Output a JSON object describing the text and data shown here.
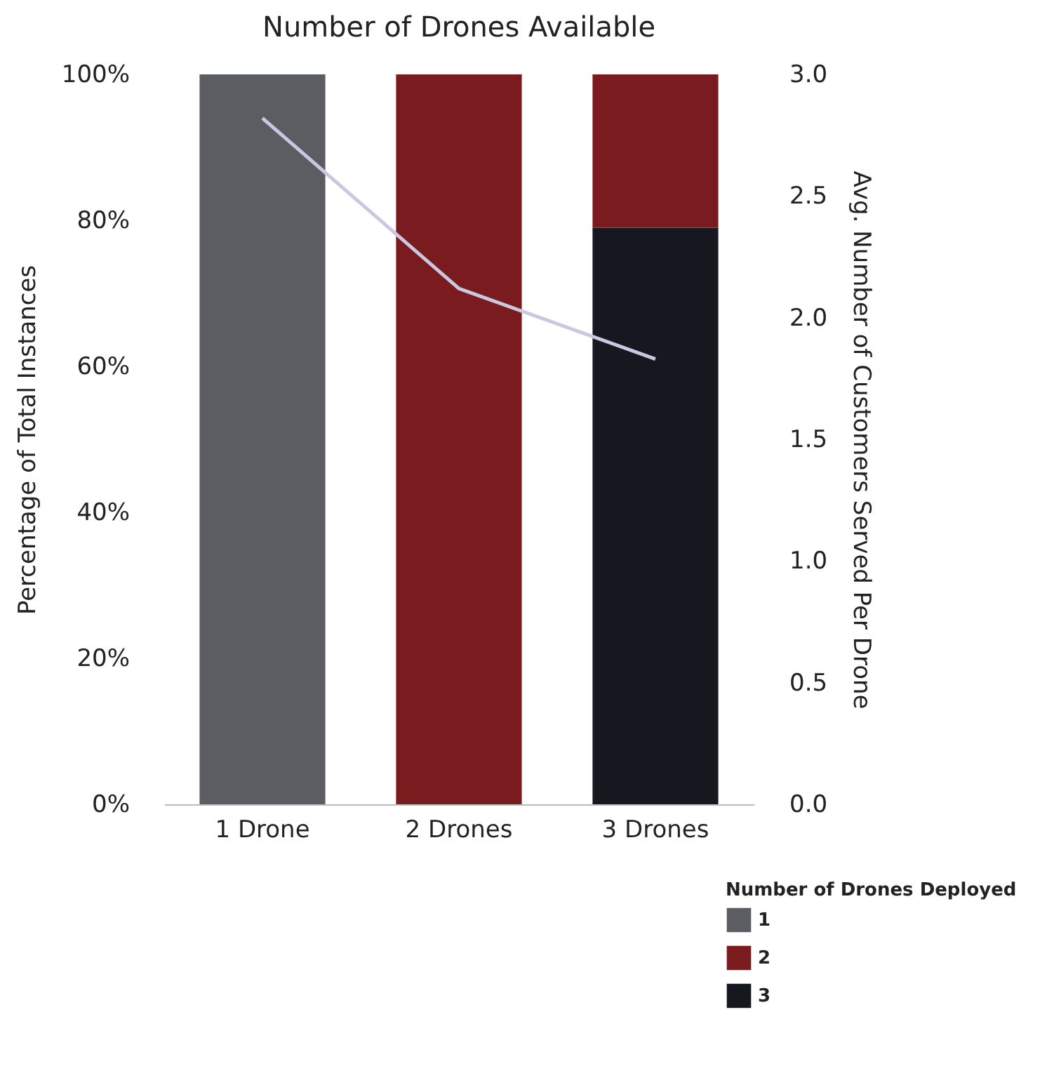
{
  "chart_data": {
    "type": "bar",
    "title": "Number of Drones Available",
    "ylabel": "Percentage of Total Instances",
    "y2label": "Avg. Number of Customers Served Per Drone",
    "legend_title": "Number of Drones Deployed",
    "categories": [
      "1 Drone",
      "2 Drones",
      "3 Drones"
    ],
    "stacked": true,
    "series": [
      {
        "name": "3",
        "color": "#15181f",
        "values": [
          null,
          null,
          79
        ]
      },
      {
        "name": "2",
        "color": "#7a1b20",
        "values": [
          null,
          100,
          21
        ]
      },
      {
        "name": "1",
        "color": "#5c5d63",
        "values": [
          100,
          null,
          null
        ]
      },
      {
        "type": "line",
        "axis": "y2",
        "color": "#c8c8e0",
        "values": [
          2.82,
          2.12,
          1.83
        ]
      }
    ],
    "ylim": [
      0,
      100
    ],
    "yticks": [
      {
        "value": 0,
        "label": "0%"
      },
      {
        "value": 20,
        "label": "20%"
      },
      {
        "value": 40,
        "label": "40%"
      },
      {
        "value": 60,
        "label": "60%"
      },
      {
        "value": 80,
        "label": "80%"
      },
      {
        "value": 100,
        "label": "100%"
      }
    ],
    "y2lim": [
      0,
      3
    ],
    "y2ticks": [
      {
        "value": 0,
        "label": "0.0"
      },
      {
        "value": 0.5,
        "label": "0.5"
      },
      {
        "value": 1,
        "label": "1.0"
      },
      {
        "value": 1.5,
        "label": "1.5"
      },
      {
        "value": 2,
        "label": "2.0"
      },
      {
        "value": 2.5,
        "label": "2.5"
      },
      {
        "value": 3,
        "label": "3.0"
      }
    ],
    "grid": false,
    "legend": "bottom right",
    "marker": "none"
  }
}
